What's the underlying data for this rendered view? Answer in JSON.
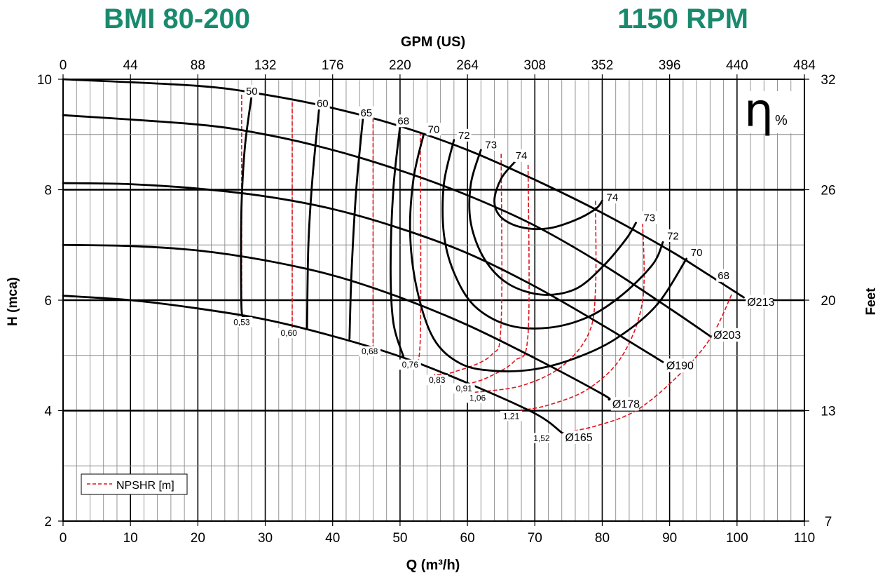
{
  "chart_data": {
    "type": "line",
    "title": "BMI 80-200",
    "subtitle": "1150 RPM",
    "xlabel": "Q (m³/h)",
    "ylabel": "H (mca)",
    "x2label": "GPM (US)",
    "y2label": "Feet",
    "xlim": [
      0,
      110
    ],
    "ylim": [
      2,
      10
    ],
    "x_ticks": [
      "0",
      "10",
      "20",
      "30",
      "40",
      "50",
      "60",
      "70",
      "80",
      "90",
      "100",
      "110"
    ],
    "y_ticks": [
      "2",
      "4",
      "6",
      "8",
      "10"
    ],
    "x2_ticks": [
      "0",
      "44",
      "88",
      "132",
      "176",
      "220",
      "264",
      "308",
      "352",
      "396",
      "440",
      "484"
    ],
    "y2_ticks": [
      {
        "label": "7",
        "h": 2
      },
      {
        "label": "13",
        "h": 4
      },
      {
        "label": "20",
        "h": 6
      },
      {
        "label": "26",
        "h": 8
      },
      {
        "label": "32",
        "h": 10
      }
    ],
    "grid": true,
    "eff_symbol": "η",
    "eff_unit": "%",
    "legend": {
      "position": "bottom-left",
      "entry": "NPSHR [m]"
    },
    "diameter_curves": [
      {
        "name": "Ø213",
        "points": [
          [
            0,
            10.0
          ],
          [
            20,
            9.88
          ],
          [
            30,
            9.72
          ],
          [
            40,
            9.48
          ],
          [
            50,
            9.15
          ],
          [
            60,
            8.72
          ],
          [
            70,
            8.18
          ],
          [
            80,
            7.58
          ],
          [
            90,
            6.9
          ],
          [
            95,
            6.52
          ],
          [
            101,
            6.05
          ]
        ]
      },
      {
        "name": "Ø203",
        "points": [
          [
            0,
            9.35
          ],
          [
            20,
            9.18
          ],
          [
            30,
            9.0
          ],
          [
            40,
            8.72
          ],
          [
            50,
            8.35
          ],
          [
            60,
            7.9
          ],
          [
            70,
            7.35
          ],
          [
            80,
            6.65
          ],
          [
            90,
            5.85
          ],
          [
            96,
            5.35
          ]
        ]
      },
      {
        "name": "Ø190",
        "points": [
          [
            0,
            8.12
          ],
          [
            10,
            8.1
          ],
          [
            20,
            8.02
          ],
          [
            30,
            7.88
          ],
          [
            40,
            7.65
          ],
          [
            50,
            7.3
          ],
          [
            60,
            6.85
          ],
          [
            70,
            6.25
          ],
          [
            80,
            5.55
          ],
          [
            89,
            4.88
          ]
        ]
      },
      {
        "name": "Ø178",
        "points": [
          [
            0,
            7.0
          ],
          [
            10,
            6.98
          ],
          [
            20,
            6.9
          ],
          [
            30,
            6.72
          ],
          [
            40,
            6.45
          ],
          [
            50,
            6.05
          ],
          [
            60,
            5.55
          ],
          [
            70,
            4.95
          ],
          [
            80,
            4.3
          ],
          [
            81,
            4.2
          ]
        ]
      },
      {
        "name": "Ø165",
        "points": [
          [
            0,
            6.08
          ],
          [
            10,
            6.0
          ],
          [
            20,
            5.85
          ],
          [
            30,
            5.65
          ],
          [
            40,
            5.35
          ],
          [
            50,
            4.98
          ],
          [
            60,
            4.5
          ],
          [
            70,
            3.95
          ],
          [
            74,
            3.6
          ]
        ]
      }
    ],
    "efficiency_curves": [
      {
        "label": "50",
        "points": [
          [
            28.0,
            9.72
          ],
          [
            27.0,
            8.8
          ],
          [
            26.5,
            7.8
          ],
          [
            26.4,
            6.8
          ],
          [
            26.5,
            5.8
          ],
          [
            27.0,
            5.72
          ]
        ]
      },
      {
        "label": "60",
        "points": [
          [
            38.0,
            9.48
          ],
          [
            37.0,
            8.2
          ],
          [
            36.4,
            7.0
          ],
          [
            36.2,
            5.5
          ]
        ]
      },
      {
        "label": "65",
        "points": [
          [
            44.5,
            9.3
          ],
          [
            43.5,
            8.0
          ],
          [
            42.8,
            6.5
          ],
          [
            42.5,
            5.3
          ]
        ]
      },
      {
        "label": "68",
        "points": [
          [
            50.0,
            9.15
          ],
          [
            49.0,
            8.0
          ],
          [
            48.6,
            6.6
          ],
          [
            49.0,
            5.6
          ],
          [
            50.5,
            4.98
          ]
        ]
      },
      {
        "label": "70",
        "points": [
          [
            53.5,
            9.0
          ],
          [
            52.0,
            8.2
          ],
          [
            51.5,
            7.2
          ],
          [
            52.5,
            6.2
          ],
          [
            55.0,
            5.3
          ],
          [
            59.0,
            4.85
          ],
          [
            64.0,
            4.72
          ],
          [
            70.0,
            4.75
          ],
          [
            76.0,
            4.95
          ],
          [
            82.0,
            5.3
          ],
          [
            88.0,
            5.9
          ],
          [
            92.5,
            6.75
          ]
        ]
      },
      {
        "label": "72",
        "points": [
          [
            58.0,
            8.9
          ],
          [
            56.5,
            8.1
          ],
          [
            56.5,
            7.2
          ],
          [
            58.0,
            6.5
          ],
          [
            61.0,
            5.9
          ],
          [
            66.0,
            5.55
          ],
          [
            72.0,
            5.5
          ],
          [
            78.0,
            5.7
          ],
          [
            83.0,
            6.1
          ],
          [
            87.5,
            6.65
          ],
          [
            89.0,
            7.05
          ]
        ]
      },
      {
        "label": "73",
        "points": [
          [
            62.0,
            8.72
          ],
          [
            60.5,
            8.1
          ],
          [
            60.5,
            7.4
          ],
          [
            62.5,
            6.75
          ],
          [
            66.0,
            6.3
          ],
          [
            71.0,
            6.1
          ],
          [
            76.0,
            6.2
          ],
          [
            80.0,
            6.6
          ],
          [
            83.5,
            7.1
          ],
          [
            85.0,
            7.4
          ]
        ]
      },
      {
        "label": "74",
        "points": [
          [
            67.0,
            8.5
          ],
          [
            65.0,
            8.2
          ],
          [
            64.0,
            7.8
          ],
          [
            65.0,
            7.5
          ],
          [
            68.0,
            7.32
          ],
          [
            72.0,
            7.3
          ],
          [
            76.0,
            7.45
          ],
          [
            79.0,
            7.65
          ],
          [
            80.0,
            7.8
          ]
        ]
      }
    ],
    "efficiency_labels": [
      {
        "label": "50",
        "x": 28.0,
        "y": 9.72
      },
      {
        "label": "60",
        "x": 38.5,
        "y": 9.5
      },
      {
        "label": "65",
        "x": 45.0,
        "y": 9.33
      },
      {
        "label": "68",
        "x": 50.5,
        "y": 9.18
      },
      {
        "label": "70",
        "x": 55.0,
        "y": 9.03
      },
      {
        "label": "72",
        "x": 59.5,
        "y": 8.92
      },
      {
        "label": "73",
        "x": 63.5,
        "y": 8.75
      },
      {
        "label": "74",
        "x": 68.0,
        "y": 8.55
      },
      {
        "label": "74",
        "x": 81.5,
        "y": 7.8
      },
      {
        "label": "73",
        "x": 87.0,
        "y": 7.43
      },
      {
        "label": "72",
        "x": 90.5,
        "y": 7.1
      },
      {
        "label": "70",
        "x": 94.0,
        "y": 6.8
      },
      {
        "label": "68",
        "x": 98.0,
        "y": 6.38
      }
    ],
    "npshr_curves": [
      {
        "label": "0,53",
        "points": [
          [
            26.5,
            9.72
          ],
          [
            26.5,
            5.72
          ]
        ]
      },
      {
        "label": "0,60",
        "points": [
          [
            34.0,
            9.58
          ],
          [
            34.0,
            5.45
          ]
        ]
      },
      {
        "label": "0,68",
        "points": [
          [
            46.0,
            9.3
          ],
          [
            46.0,
            5.1
          ]
        ]
      },
      {
        "label": "0,76",
        "points": [
          [
            53.0,
            9.05
          ],
          [
            53.0,
            5.3
          ],
          [
            52.0,
            4.9
          ]
        ]
      },
      {
        "label": "0,83",
        "points": [
          [
            65.0,
            8.65
          ],
          [
            65.0,
            5.6
          ],
          [
            63.5,
            5.0
          ],
          [
            58.0,
            4.7
          ],
          [
            55.0,
            4.65
          ]
        ]
      },
      {
        "label": "0,91",
        "points": [
          [
            69.0,
            8.45
          ],
          [
            69.0,
            5.4
          ],
          [
            67.0,
            4.9
          ],
          [
            63.0,
            4.6
          ],
          [
            60.0,
            4.48
          ]
        ]
      },
      {
        "label": "1,06",
        "points": [
          [
            79.0,
            7.8
          ],
          [
            79.0,
            6.2
          ],
          [
            78.0,
            5.4
          ],
          [
            74.0,
            4.8
          ],
          [
            68.0,
            4.45
          ],
          [
            61.0,
            4.33
          ]
        ]
      },
      {
        "label": "1,21",
        "points": [
          [
            86.0,
            7.4
          ],
          [
            86.0,
            6.0
          ],
          [
            83.0,
            5.0
          ],
          [
            78.0,
            4.4
          ],
          [
            72.0,
            4.1
          ],
          [
            67.5,
            4.0
          ]
        ]
      },
      {
        "label": "1,52",
        "points": [
          [
            99.2,
            6.1
          ],
          [
            96.0,
            5.3
          ],
          [
            91.0,
            4.6
          ],
          [
            85.0,
            4.0
          ],
          [
            79.0,
            3.72
          ],
          [
            74.0,
            3.6
          ]
        ]
      }
    ],
    "npshr_labels": [
      {
        "label": "0,53",
        "x": 26.5,
        "y": 5.55
      },
      {
        "label": "0,60",
        "x": 33.5,
        "y": 5.35
      },
      {
        "label": "0,68",
        "x": 45.5,
        "y": 5.02
      },
      {
        "label": "0,76",
        "x": 51.5,
        "y": 4.78
      },
      {
        "label": "0,83",
        "x": 55.5,
        "y": 4.5
      },
      {
        "label": "0,91",
        "x": 59.5,
        "y": 4.35
      },
      {
        "label": "1,06",
        "x": 61.5,
        "y": 4.18
      },
      {
        "label": "1,21",
        "x": 66.5,
        "y": 3.85
      },
      {
        "label": "1,52",
        "x": 71.0,
        "y": 3.45
      }
    ],
    "diameter_labels": [
      {
        "label": "Ø213",
        "x": 101.5,
        "y": 5.9
      },
      {
        "label": "Ø203",
        "x": 96.5,
        "y": 5.3
      },
      {
        "label": "Ø190",
        "x": 89.5,
        "y": 4.75
      },
      {
        "label": "Ø178",
        "x": 81.5,
        "y": 4.05
      },
      {
        "label": "Ø165",
        "x": 74.5,
        "y": 3.45
      }
    ],
    "colors": {
      "title": "#1a8a6e",
      "curve": "#000000",
      "npshr": "#e0141e",
      "grid_major": "#000000",
      "grid_minor": "#8a8a8a"
    }
  }
}
